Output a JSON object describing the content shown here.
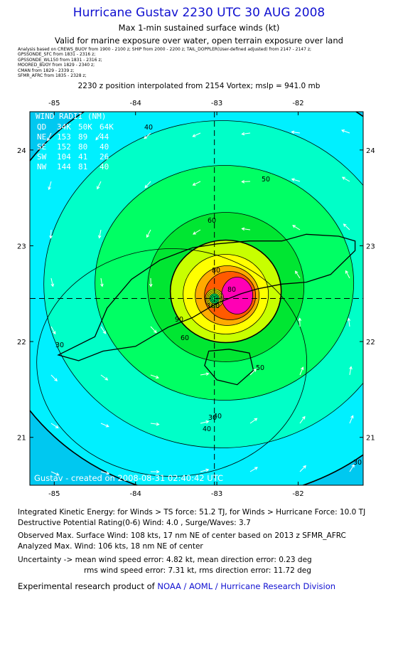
{
  "header": {
    "title": "Hurricane Gustav 2230 UTC 30 AUG 2008",
    "subtitle": "Max 1-min sustained surface winds (kt)",
    "valid": "Valid for marine exposure over water, open terrain exposure over land",
    "sources": [
      "Analysis based on CREWS_BUOY from 1900 - 2100 z;  SHIP from 2000 - 2200 z;  TAIL_DOPPLER(User-defined adjusted) from 2147 - 2147 z;",
      "GPSSONDE_SFC from 1831 - 2316 z;",
      "GPSSONDE_WL150 from 1831 - 2316 z;",
      "MOORED_BUOY from 1829 - 2340 z;",
      "CMAN from 1829 - 2339 z;",
      "SFMR_AFRC from 1835 - 2328 z;"
    ],
    "position": "2230 z position interpolated from 2154 Vortex; mslp = 941.0 mb"
  },
  "map": {
    "lon_ticks": [
      "-85",
      "-84",
      "-83",
      "-82"
    ],
    "lat_ticks": [
      "24",
      "23",
      "22",
      "21"
    ],
    "lon_range": [
      -85.3,
      -81.2
    ],
    "lat_range": [
      20.5,
      24.4
    ],
    "center": {
      "lon": -83.03,
      "lat": 22.45
    },
    "wind_radii": {
      "title": "WIND RADII (NM)",
      "header": [
        "QD",
        "34K",
        "50K",
        "64K"
      ],
      "rows": [
        [
          "NE",
          "153",
          "89",
          "44"
        ],
        [
          "SE",
          "152",
          "80",
          "40"
        ],
        [
          "SW",
          "104",
          "41",
          "26"
        ],
        [
          "NW",
          "144",
          "81",
          "40"
        ]
      ]
    },
    "contour_labels": [
      "30",
      "30",
      "30",
      "40",
      "40",
      "40",
      "50",
      "50",
      "60",
      "60",
      "80",
      "90",
      "100",
      "80"
    ],
    "watermark": "Gustav - created on 2008-08-31 02:40:42 UTC",
    "colors": {
      "lt30": "#00c8f0",
      "30": "#00f0ff",
      "40": "#00ffc8",
      "50": "#00ff64",
      "60": "#00e632",
      "64": "#c8ff00",
      "70": "#ffff00",
      "80": "#ffaa00",
      "90": "#ff5a00",
      "100": "#ff00b4",
      "land": "#000000"
    }
  },
  "footer": {
    "ike": "Integrated Kinetic Energy:  for Winds > TS force: 51.2 TJ,  for Winds > Hurricane Force: 10.0 TJ",
    "dpr": "Destructive Potential Rating(0-6)   Wind: 4.0 , Surge/Waves: 3.7",
    "observed": "Observed Max. Surface Wind: 108 kts, 17 nm NE of center based on 2013 z SFMR_AFRC",
    "analyzed": "Analyzed Max. Wind: 106 kts, 18 nm NE of center",
    "uncertainty1": "Uncertainty -> mean wind speed error: 4.82 kt,   mean direction error: 0.23 deg",
    "uncertainty2": "rms wind speed error: 7.31 kt,   rms direction error: 11.72 deg",
    "credit_prefix": "Experimental research product of ",
    "credit_link": "NOAA / AOML / Hurricane Research Division"
  }
}
